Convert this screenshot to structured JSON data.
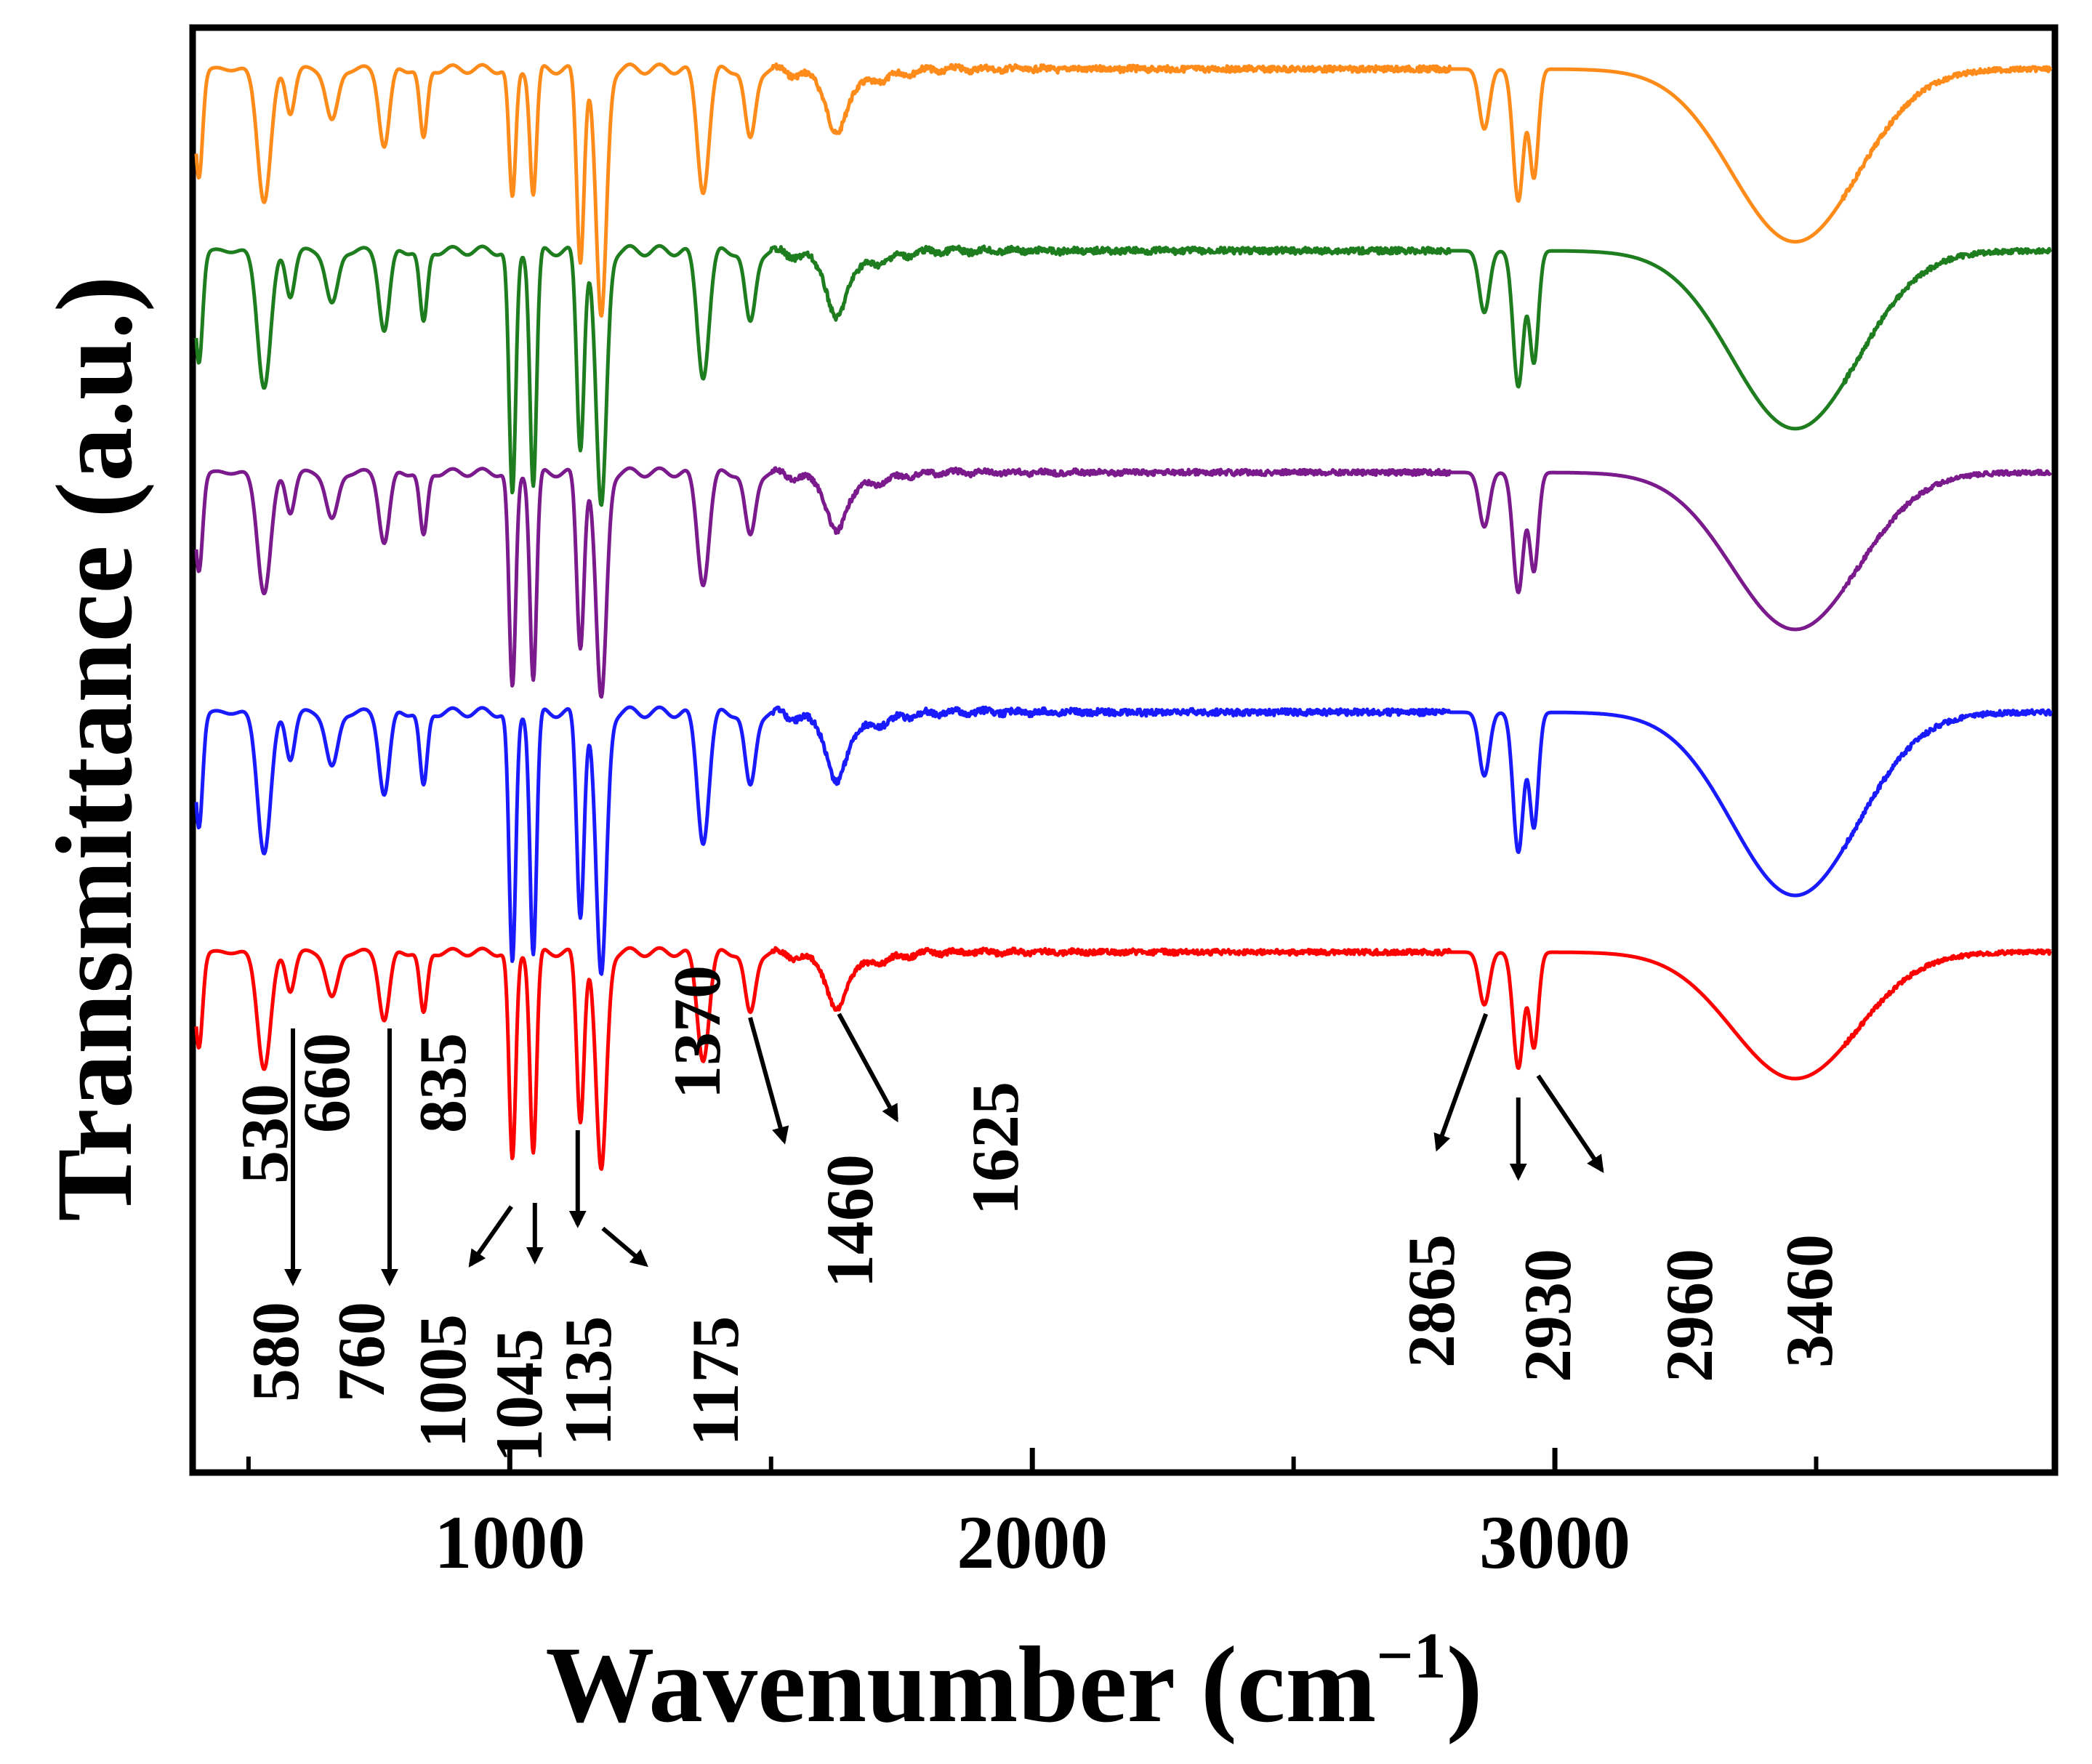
{
  "chart_data": {
    "type": "line",
    "title": "",
    "xlabel": "Wavenumber (cm",
    "xlabel_sup": "−1",
    "xlabel_close": ")",
    "ylabel": "Transmittance (a.u.)",
    "xlim": [
      400,
      3950
    ],
    "x_ticks": [
      1000,
      2000,
      3000
    ],
    "x_tick_labels": [
      "1000",
      "2000",
      "3000"
    ],
    "x_minor_ticks": [
      500,
      1500,
      2500,
      3500
    ],
    "colors": [
      "#ff8c1a",
      "#1e7d1e",
      "#7a1a8c",
      "#1a1aff",
      "#ff0000"
    ],
    "series": [
      {
        "name": "orange",
        "color": "#ff8c1a",
        "offset": 4
      },
      {
        "name": "green",
        "color": "#1e7d1e",
        "offset": 3
      },
      {
        "name": "purple",
        "color": "#7a1a8c",
        "offset": 2
      },
      {
        "name": "blue",
        "color": "#1a1aff",
        "offset": 1
      },
      {
        "name": "red",
        "color": "#ff0000",
        "offset": 0
      }
    ],
    "peaks": [
      {
        "wavenumber": 530,
        "depth": 0.55,
        "width": 18
      },
      {
        "wavenumber": 580,
        "depth": 0.18,
        "width": 12
      },
      {
        "wavenumber": 660,
        "depth": 0.22,
        "width": 16
      },
      {
        "wavenumber": 760,
        "depth": 0.32,
        "width": 14
      },
      {
        "wavenumber": 835,
        "depth": 0.3,
        "width": 10
      },
      {
        "wavenumber": 1005,
        "depth": 1.0,
        "width": 9
      },
      {
        "wavenumber": 1045,
        "depth": 0.95,
        "width": 9
      },
      {
        "wavenumber": 1135,
        "depth": 0.8,
        "width": 10
      },
      {
        "wavenumber": 1175,
        "depth": 1.05,
        "width": 14
      },
      {
        "wavenumber": 1370,
        "depth": 0.5,
        "width": 16
      },
      {
        "wavenumber": 1460,
        "depth": 0.3,
        "width": 14
      },
      {
        "wavenumber": 1625,
        "depth": 0.22,
        "width": 22
      },
      {
        "wavenumber": 2865,
        "depth": 0.25,
        "width": 14
      },
      {
        "wavenumber": 2930,
        "depth": 0.55,
        "width": 14
      },
      {
        "wavenumber": 2960,
        "depth": 0.45,
        "width": 12
      },
      {
        "wavenumber": 3460,
        "depth": 1.05,
        "width": 170
      }
    ],
    "annotations": [
      {
        "label": "530",
        "x": 530
      },
      {
        "label": "580",
        "x": 580
      },
      {
        "label": "660",
        "x": 660
      },
      {
        "label": "760",
        "x": 760
      },
      {
        "label": "835",
        "x": 835
      },
      {
        "label": "1005",
        "x": 1005
      },
      {
        "label": "1045",
        "x": 1045
      },
      {
        "label": "1135",
        "x": 1135
      },
      {
        "label": "1175",
        "x": 1175
      },
      {
        "label": "1370",
        "x": 1370
      },
      {
        "label": "1460",
        "x": 1460
      },
      {
        "label": "1625",
        "x": 1625
      },
      {
        "label": "2865",
        "x": 2865
      },
      {
        "label": "2930",
        "x": 2930
      },
      {
        "label": "2960",
        "x": 2960
      },
      {
        "label": "3460",
        "x": 3460
      }
    ]
  }
}
